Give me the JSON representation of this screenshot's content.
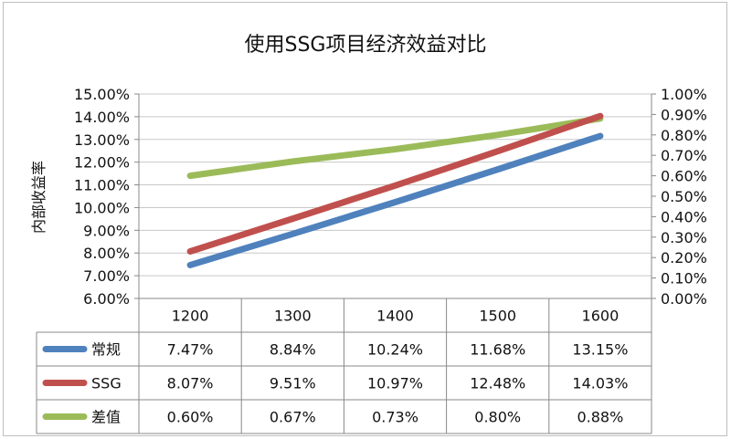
{
  "chart_data": {
    "type": "line",
    "title": "使用SSG项目经济效益对比",
    "ylabel": "内部收益率",
    "categories": [
      "1200",
      "1300",
      "1400",
      "1500",
      "1600"
    ],
    "left_axis": {
      "ylim": [
        6,
        15
      ],
      "ticks": [
        "6.00%",
        "7.00%",
        "8.00%",
        "9.00%",
        "10.00%",
        "11.00%",
        "12.00%",
        "13.00%",
        "14.00%",
        "15.00%"
      ]
    },
    "right_axis": {
      "ylim": [
        0,
        1
      ],
      "ticks": [
        "0.00%",
        "0.10%",
        "0.20%",
        "0.30%",
        "0.40%",
        "0.50%",
        "0.60%",
        "0.70%",
        "0.80%",
        "0.90%",
        "1.00%"
      ]
    },
    "grid": true,
    "legend": "data-table",
    "series": [
      {
        "name": "常规",
        "axis": "left",
        "color": "#4f81bd",
        "values": [
          7.47,
          8.84,
          10.24,
          11.68,
          13.15
        ],
        "labels": [
          "7.47%",
          "8.84%",
          "10.24%",
          "11.68%",
          "13.15%"
        ]
      },
      {
        "name": "SSG",
        "axis": "left",
        "color": "#c0504d",
        "values": [
          8.07,
          9.51,
          10.97,
          12.48,
          14.03
        ],
        "labels": [
          "8.07%",
          "9.51%",
          "10.97%",
          "12.48%",
          "14.03%"
        ]
      },
      {
        "name": "差值",
        "axis": "right",
        "color": "#9bbb59",
        "values": [
          0.6,
          0.67,
          0.73,
          0.8,
          0.88
        ],
        "labels": [
          "0.60%",
          "0.67%",
          "0.73%",
          "0.80%",
          "0.88%"
        ]
      }
    ]
  }
}
